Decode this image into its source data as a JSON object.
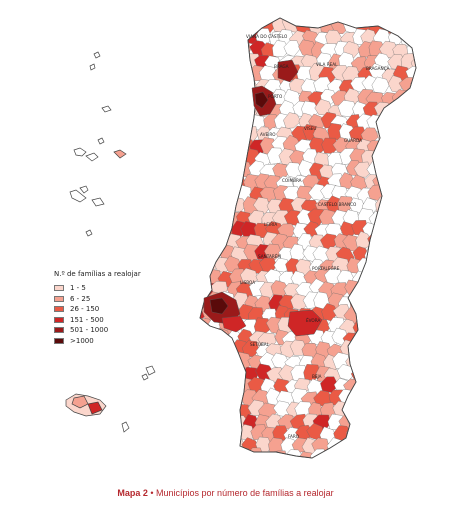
{
  "legend": {
    "title": "N.º de famílias a realojar",
    "items": [
      {
        "label": "1 - 5",
        "color": "#fbd6cc"
      },
      {
        "label": "6 - 25",
        "color": "#f5a190"
      },
      {
        "label": "26 - 150",
        "color": "#ea5a45"
      },
      {
        "label": "151 - 500",
        "color": "#cf2626"
      },
      {
        "label": "501 - 1000",
        "color": "#9a1a1a"
      },
      {
        "label": ">1000",
        "color": "#5a0a0a"
      }
    ]
  },
  "caption": {
    "prefix": "Mapa 2",
    "separator": " • ",
    "text": "Municípios por número de famílias a realojar"
  },
  "cities": [
    "VIANA DO CASTELO",
    "BRAGA",
    "VILA REAL",
    "BRAGANÇA",
    "PORTO",
    "VISEU",
    "AVEIRO",
    "GUARDA",
    "COIMBRA",
    "CASTELO BRANCO",
    "LEIRIA",
    "SANTARÉM",
    "PORTALEGRE",
    "LISBOA",
    "ÉVORA",
    "SETÚBAL",
    "BEJA",
    "FARO"
  ],
  "colors": {
    "outline": "#555555",
    "empty": "#ffffff",
    "caption": "#b5282e"
  }
}
